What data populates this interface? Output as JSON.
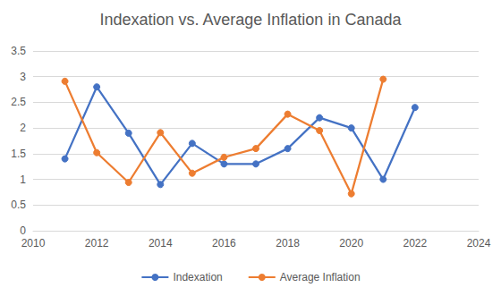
{
  "chart_data": {
    "type": "line",
    "title": "Indexation vs. Average Inflation in Canada",
    "x": [
      2011,
      2012,
      2013,
      2014,
      2015,
      2016,
      2017,
      2018,
      2019,
      2020,
      2021,
      2022
    ],
    "series": [
      {
        "name": "Indexation",
        "color": "#4472c4",
        "marker": "circle",
        "line_style": "solid",
        "values": [
          1.4,
          2.8,
          1.9,
          0.9,
          1.7,
          1.3,
          1.3,
          1.6,
          2.2,
          2.0,
          1.0,
          2.4
        ]
      },
      {
        "name": "Average Inflation",
        "color": "#ed7d31",
        "marker": "circle",
        "line_style": "solid",
        "values": [
          2.91,
          1.52,
          0.94,
          1.91,
          1.12,
          1.43,
          1.6,
          2.27,
          1.95,
          0.72,
          2.95,
          null
        ]
      }
    ],
    "xlim": [
      2010,
      2024
    ],
    "xticks": [
      2010,
      2012,
      2014,
      2016,
      2018,
      2020,
      2022,
      2024
    ],
    "ylim": [
      0,
      3.5
    ],
    "yticks": [
      0,
      0.5,
      1,
      1.5,
      2,
      2.5,
      3,
      3.5
    ],
    "grid": true,
    "legend": "bottom"
  }
}
